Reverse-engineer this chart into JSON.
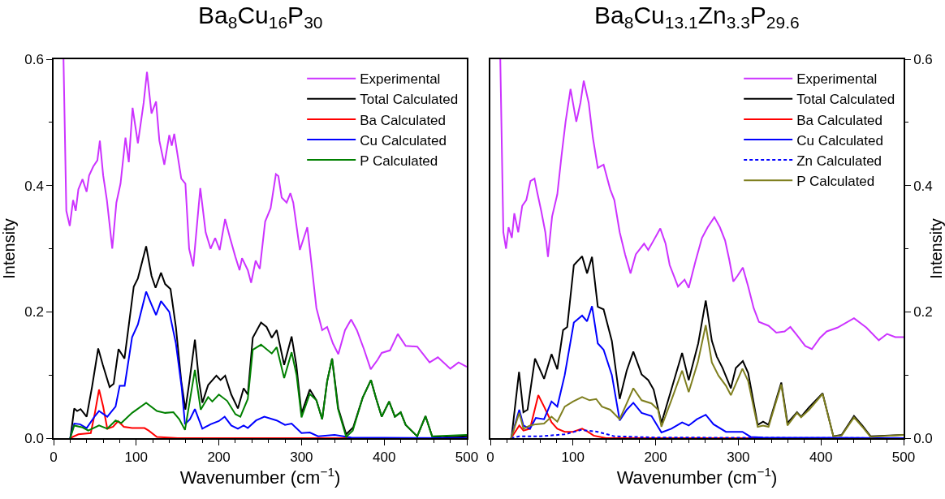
{
  "chart_data": [
    {
      "type": "line",
      "title": "Ba$_{8}$Cu$_{16}$P$_{30}$",
      "xlabel": "Wavenumber (cm$^{−1}$)",
      "ylabel": "Intensity",
      "legend": "top right",
      "xlim": [
        0,
        500
      ],
      "xticks": [
        0,
        {
          "value": 20,
          "label": null
        },
        {
          "value": 40,
          "label": null
        },
        {
          "value": 60,
          "label": null
        },
        {
          "value": 80,
          "label": null
        },
        100,
        {
          "value": 120,
          "label": null
        },
        {
          "value": 140,
          "label": null
        },
        {
          "value": 160,
          "label": null
        },
        {
          "value": 180,
          "label": null
        },
        200,
        {
          "value": 220,
          "label": null
        },
        {
          "value": 240,
          "label": null
        },
        {
          "value": 260,
          "label": null
        },
        {
          "value": 280,
          "label": null
        },
        300,
        {
          "value": 320,
          "label": null
        },
        {
          "value": 340,
          "label": null
        },
        {
          "value": 360,
          "label": null
        },
        {
          "value": 380,
          "label": null
        },
        400,
        {
          "value": 420,
          "label": null
        },
        {
          "value": 440,
          "label": null
        },
        {
          "value": 460,
          "label": null
        },
        {
          "value": 480,
          "label": null
        },
        500
      ],
      "ylim": [
        0,
        0.6
      ],
      "yticks": [
        {
          "value": 0,
          "label": "0.0"
        },
        {
          "value": 0.1,
          "label": null
        },
        {
          "value": 0.2,
          "label": "0.2"
        },
        {
          "value": 0.3,
          "label": null
        },
        {
          "value": 0.4,
          "label": "0.4"
        },
        {
          "value": 0.5,
          "label": null
        },
        {
          "value": 0.6,
          "label": "0.6"
        }
      ],
      "series": [
        {
          "name": "Experimental",
          "color": "#cc33ff",
          "x": [
            12,
            15.4,
            19.6,
            23.6,
            26.8,
            30,
            35,
            40,
            43,
            48,
            53,
            56,
            60,
            64.5,
            71,
            76,
            81,
            87,
            91,
            95.6,
            102,
            109,
            113,
            118.5,
            124,
            128,
            134,
            140,
            143,
            146,
            154.5,
            159.5,
            164,
            169,
            177.5,
            184,
            190,
            195.5,
            201,
            207.5,
            213.5,
            220,
            225,
            228,
            235,
            239,
            244.5,
            249.5,
            256,
            262.6,
            269,
            272,
            276,
            282,
            286.5,
            290,
            298,
            307,
            310,
            318,
            325,
            331,
            338,
            344.5,
            352.6,
            360,
            367,
            375.5,
            383.7,
            392,
            397,
            407,
            416.5,
            426,
            440,
            455,
            465,
            480,
            490,
            500
          ],
          "values": [
            0.6,
            0.36,
            0.336,
            0.377,
            0.36,
            0.394,
            0.41,
            0.39,
            0.416,
            0.43,
            0.44,
            0.471,
            0.416,
            0.377,
            0.3,
            0.373,
            0.403,
            0.476,
            0.437,
            0.523,
            0.467,
            0.531,
            0.58,
            0.514,
            0.533,
            0.471,
            0.433,
            0.48,
            0.463,
            0.482,
            0.411,
            0.403,
            0.3,
            0.272,
            0.396,
            0.326,
            0.3,
            0.317,
            0.298,
            0.347,
            0.317,
            0.287,
            0.266,
            0.285,
            0.266,
            0.246,
            0.281,
            0.268,
            0.343,
            0.364,
            0.418,
            0.415,
            0.381,
            0.373,
            0.388,
            0.373,
            0.298,
            0.334,
            0.3,
            0.206,
            0.171,
            0.176,
            0.15,
            0.133,
            0.171,
            0.188,
            0.171,
            0.141,
            0.109,
            0.124,
            0.135,
            0.139,
            0.165,
            0.146,
            0.145,
            0.12,
            0.128,
            0.11,
            0.12,
            0.113
          ]
        },
        {
          "name": "Total Calculated",
          "color": "#000000",
          "x": [
            20.3,
            25,
            28.5,
            32.7,
            40,
            46.5,
            54,
            59.6,
            67.8,
            72.7,
            78.6,
            85.8,
            92,
            97,
            102,
            112,
            118.5,
            123.4,
            130,
            135,
            141.5,
            148,
            154.5,
            159.5,
            164.4,
            171,
            176,
            180,
            187,
            197,
            202,
            207.6,
            215,
            223,
            230,
            235,
            241,
            251,
            257.7,
            264,
            270,
            279,
            288,
            293.7,
            300,
            310,
            318,
            325,
            331,
            337,
            344.5,
            354,
            362.5,
            374,
            384,
            390,
            397,
            406,
            413,
            420,
            426,
            440,
            450,
            458,
            470,
            500
          ],
          "values": [
            0,
            0.047,
            0.043,
            0.046,
            0.034,
            0.081,
            0.142,
            0.116,
            0.081,
            0.086,
            0.141,
            0.126,
            0.189,
            0.24,
            0.253,
            0.304,
            0.257,
            0.238,
            0.262,
            0.244,
            0.236,
            0.176,
            0.09,
            0.045,
            0.09,
            0.156,
            0.09,
            0.056,
            0.084,
            0.099,
            0.092,
            0.099,
            0.069,
            0.047,
            0.079,
            0.069,
            0.159,
            0.183,
            0.176,
            0.159,
            0.171,
            0.116,
            0.161,
            0.116,
            0.039,
            0.077,
            0.06,
            0.03,
            0.09,
            0.126,
            0.047,
            0.006,
            0.017,
            0.064,
            0.092,
            0.064,
            0.034,
            0.058,
            0.034,
            0.041,
            0.021,
            0.003,
            0.035,
            0.003,
            0.001,
            0.003
          ]
        },
        {
          "name": "Ba Calculated",
          "color": "#ff0000",
          "x": [
            20,
            30,
            45,
            50,
            55,
            60,
            65,
            72,
            78,
            85,
            95,
            110,
            115,
            125,
            150,
            500
          ],
          "values": [
            0,
            0.006,
            0.008,
            0.04,
            0.077,
            0.05,
            0.015,
            0.018,
            0.027,
            0.018,
            0.016,
            0.016,
            0.012,
            0.002,
            0,
            0
          ]
        },
        {
          "name": "Cu Calculated",
          "color": "#0000ff",
          "x": [
            20,
            25,
            32,
            40,
            50,
            55,
            65,
            75,
            80,
            86,
            95,
            102,
            112,
            119,
            124,
            130,
            140,
            148,
            155,
            159,
            165,
            171,
            180,
            190,
            200,
            207,
            215,
            223,
            230,
            235,
            245,
            255,
            270,
            280,
            288,
            300,
            310,
            320,
            340,
            360,
            500
          ],
          "values": [
            0,
            0.023,
            0.022,
            0.016,
            0.035,
            0.043,
            0.034,
            0.05,
            0.083,
            0.083,
            0.16,
            0.18,
            0.232,
            0.21,
            0.195,
            0.217,
            0.2,
            0.15,
            0.08,
            0.022,
            0.03,
            0.046,
            0.015,
            0.022,
            0.027,
            0.034,
            0.02,
            0.015,
            0.02,
            0.016,
            0.028,
            0.034,
            0.028,
            0.021,
            0.023,
            0.008,
            0.009,
            0.003,
            0.005,
            0.001,
            0
          ]
        },
        {
          "name": "P Calculated",
          "color": "#008000",
          "x": [
            20,
            25,
            35,
            42,
            55,
            65,
            75,
            82,
            95,
            112,
            125,
            135,
            145,
            152,
            159,
            171,
            178,
            187,
            192,
            200,
            210,
            220,
            226,
            235,
            241,
            251,
            264,
            270,
            279,
            288,
            294,
            300,
            310,
            318,
            325,
            331,
            337,
            344,
            354,
            362,
            374,
            384,
            390,
            397,
            406,
            413,
            420,
            426,
            440,
            450,
            458,
            500
          ],
          "values": [
            0,
            0.02,
            0.017,
            0.012,
            0.02,
            0.015,
            0.028,
            0.024,
            0.04,
            0.056,
            0.043,
            0.04,
            0.041,
            0.03,
            0.013,
            0.108,
            0.045,
            0.065,
            0.058,
            0.069,
            0.059,
            0.038,
            0.034,
            0.062,
            0.14,
            0.148,
            0.134,
            0.144,
            0.095,
            0.136,
            0.1,
            0.033,
            0.07,
            0.06,
            0.03,
            0.09,
            0.126,
            0.047,
            0.002,
            0.012,
            0.064,
            0.092,
            0.064,
            0.034,
            0.058,
            0.034,
            0.041,
            0.021,
            0.003,
            0.035,
            0.003,
            0.005
          ]
        }
      ]
    },
    {
      "type": "line",
      "title": "Ba$_{8}$Cu$_{13.1}$Zn$_{3.3}$P$_{29.6}$",
      "xlabel": "Wavenumber (cm$^{−1}$)",
      "y2label": "Intensity",
      "legend": "top right",
      "xlim": [
        0,
        500
      ],
      "xticks": [
        0,
        {
          "value": 20,
          "label": null
        },
        {
          "value": 40,
          "label": null
        },
        {
          "value": 60,
          "label": null
        },
        {
          "value": 80,
          "label": null
        },
        100,
        {
          "value": 120,
          "label": null
        },
        {
          "value": 140,
          "label": null
        },
        {
          "value": 160,
          "label": null
        },
        {
          "value": 180,
          "label": null
        },
        200,
        {
          "value": 220,
          "label": null
        },
        {
          "value": 240,
          "label": null
        },
        {
          "value": 260,
          "label": null
        },
        {
          "value": 280,
          "label": null
        },
        300,
        {
          "value": 320,
          "label": null
        },
        {
          "value": 340,
          "label": null
        },
        {
          "value": 360,
          "label": null
        },
        {
          "value": 380,
          "label": null
        },
        400,
        {
          "value": 420,
          "label": null
        },
        {
          "value": 440,
          "label": null
        },
        {
          "value": 460,
          "label": null
        },
        {
          "value": 480,
          "label": null
        },
        500
      ],
      "y2lim": [
        0,
        0.6
      ],
      "y2ticks": [
        {
          "value": 0,
          "label": "0.0"
        },
        {
          "value": 0.1,
          "label": null
        },
        {
          "value": 0.2,
          "label": "0.2"
        },
        {
          "value": 0.3,
          "label": null
        },
        {
          "value": 0.4,
          "label": "0.4"
        },
        {
          "value": 0.5,
          "label": null
        },
        {
          "value": 0.6,
          "label": "0.6"
        }
      ],
      "series": [
        {
          "name": "Experimental",
          "color": "#cc33ff",
          "axis": "y2",
          "x": [
            12,
            15.7,
            19,
            22,
            26,
            29,
            33.7,
            38.6,
            43.5,
            48.5,
            53.4,
            56.6,
            61.5,
            66.5,
            69.7,
            74.7,
            81,
            86,
            91,
            97,
            104,
            109,
            113,
            119,
            124,
            130,
            137,
            145,
            150,
            156.5,
            163,
            169.6,
            176,
            186,
            191,
            197.5,
            205.6,
            212,
            217,
            222,
            227,
            235,
            240,
            248,
            256,
            263,
            271,
            277.7,
            284,
            289,
            294,
            299,
            305.5,
            312,
            318.6,
            325,
            336.6,
            346,
            356,
            363,
            371,
            381,
            389,
            399,
            407,
            420,
            440,
            455,
            470,
            480,
            490,
            500
          ],
          "values": [
            0.6,
            0.326,
            0.3,
            0.334,
            0.317,
            0.356,
            0.326,
            0.368,
            0.377,
            0.407,
            0.411,
            0.39,
            0.36,
            0.326,
            0.287,
            0.351,
            0.386,
            0.446,
            0.501,
            0.553,
            0.501,
            0.531,
            0.566,
            0.531,
            0.476,
            0.428,
            0.433,
            0.394,
            0.377,
            0.326,
            0.291,
            0.261,
            0.291,
            0.308,
            0.298,
            0.313,
            0.332,
            0.308,
            0.274,
            0.257,
            0.24,
            0.251,
            0.238,
            0.279,
            0.317,
            0.334,
            0.35,
            0.334,
            0.313,
            0.283,
            0.248,
            0.257,
            0.27,
            0.24,
            0.206,
            0.184,
            0.178,
            0.167,
            0.169,
            0.176,
            0.163,
            0.146,
            0.141,
            0.159,
            0.169,
            0.175,
            0.19,
            0.175,
            0.155,
            0.165,
            0.16,
            0.16
          ]
        },
        {
          "name": "Total Calculated",
          "color": "#000000",
          "axis": "y2",
          "x": [
            25.5,
            34.7,
            40,
            45,
            54,
            65,
            74,
            81,
            88,
            93,
            101,
            111,
            117,
            123,
            130,
            137,
            147,
            156.5,
            165,
            173,
            183,
            191,
            197.5,
            207,
            219,
            232,
            240,
            251.5,
            260.6,
            268,
            274,
            281,
            291,
            297,
            305.5,
            312,
            323.5,
            330,
            336.6,
            352,
            359.5,
            371,
            376,
            385.7,
            402,
            415,
            425,
            440,
            450,
            460,
            500
          ],
          "values": [
            0,
            0.105,
            0.041,
            0.045,
            0.126,
            0.094,
            0.133,
            0.109,
            0.171,
            0.176,
            0.274,
            0.288,
            0.261,
            0.287,
            0.208,
            0.204,
            0.154,
            0.062,
            0.107,
            0.137,
            0.101,
            0.092,
            0.077,
            0.024,
            0.077,
            0.135,
            0.092,
            0.15,
            0.218,
            0.154,
            0.129,
            0.111,
            0.079,
            0.111,
            0.122,
            0.103,
            0.021,
            0.026,
            0.021,
            0.088,
            0.024,
            0.041,
            0.034,
            0.049,
            0.071,
            0.003,
            0.005,
            0.035,
            0.02,
            0.003,
            0.005
          ]
        },
        {
          "name": "Ba Calculated",
          "color": "#ff0000",
          "axis": "y2",
          "x": [
            25,
            35,
            40,
            48,
            58,
            65,
            74,
            81,
            90,
            100,
            111,
            118,
            125,
            140,
            500
          ],
          "values": [
            0,
            0.02,
            0.012,
            0.015,
            0.068,
            0.05,
            0.025,
            0.015,
            0.01,
            0.01,
            0.015,
            0.01,
            0.004,
            0,
            0
          ]
        },
        {
          "name": "Cu Calculated",
          "color": "#0000ff",
          "axis": "y2",
          "x": [
            25,
            35,
            40,
            48,
            55,
            65,
            74,
            81,
            90,
            101,
            111,
            117,
            123,
            130,
            137,
            147,
            156.5,
            165,
            173,
            183,
            195,
            207,
            219,
            232,
            240,
            250,
            260.6,
            270,
            285,
            305,
            315,
            330,
            500
          ],
          "values": [
            0,
            0.045,
            0.02,
            0.015,
            0.032,
            0.03,
            0.058,
            0.05,
            0.1,
            0.183,
            0.194,
            0.185,
            0.209,
            0.15,
            0.14,
            0.1,
            0.028,
            0.045,
            0.056,
            0.04,
            0.035,
            0.009,
            0.015,
            0.025,
            0.02,
            0.03,
            0.037,
            0.022,
            0.01,
            0.01,
            0.002,
            0.001,
            0
          ]
        },
        {
          "name": "Zn Calculated",
          "color": "#0000ff",
          "axis": "y2",
          "line_style": "dashed",
          "x": [
            25,
            35,
            60,
            90,
            110,
            130,
            150,
            200,
            500
          ],
          "values": [
            0,
            0.003,
            0.003,
            0.006,
            0.013,
            0.01,
            0.003,
            0.001,
            0
          ]
        },
        {
          "name": "P Calculated",
          "color": "#7f7f1f",
          "axis": "y2",
          "x": [
            25,
            35,
            40,
            48,
            55,
            65,
            74,
            81,
            90,
            100,
            111,
            120,
            128,
            135,
            145,
            156.5,
            165,
            173,
            183,
            195,
            203,
            207,
            219,
            232,
            240,
            251,
            260.6,
            268,
            276,
            285,
            291,
            305,
            312,
            323.5,
            330,
            336.6,
            352,
            359.5,
            371,
            376,
            385.7,
            402,
            415,
            425,
            440,
            450,
            460,
            500
          ],
          "values": [
            0,
            0.04,
            0.015,
            0.02,
            0.022,
            0.023,
            0.034,
            0.026,
            0.05,
            0.058,
            0.065,
            0.06,
            0.062,
            0.05,
            0.045,
            0.03,
            0.055,
            0.079,
            0.06,
            0.055,
            0.045,
            0.018,
            0.06,
            0.107,
            0.073,
            0.12,
            0.179,
            0.12,
            0.099,
            0.083,
            0.068,
            0.11,
            0.09,
            0.018,
            0.02,
            0.018,
            0.085,
            0.02,
            0.04,
            0.033,
            0.045,
            0.07,
            0.003,
            0.004,
            0.033,
            0.018,
            0.002,
            0.005
          ]
        }
      ]
    }
  ]
}
